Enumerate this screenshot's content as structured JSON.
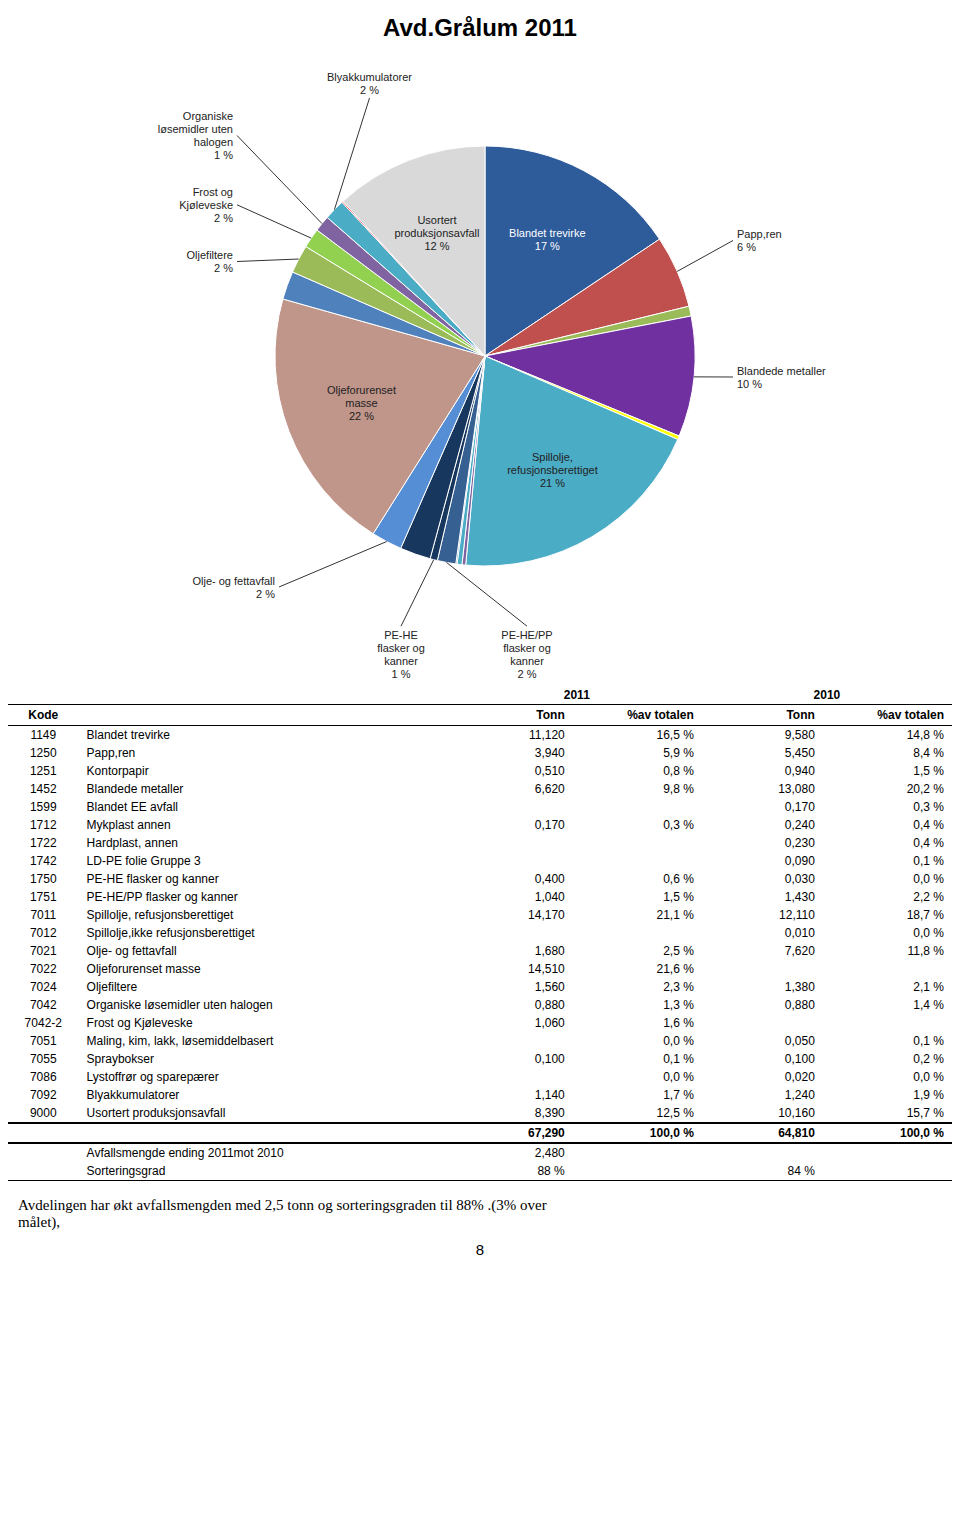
{
  "chart_data": {
    "type": "pie",
    "title": "Avd.Grålum 2011",
    "categories": [
      "Blandet trevirke\n17 %",
      "Papp,ren\n6 %",
      null,
      "Blandede metaller\n10 %",
      null,
      "Spillolje,\nrefusjonsberettiget\n21 %",
      null,
      null,
      null,
      "PE-HE/PP\nflasker og\nkanner\n2 %",
      "PE-HE\nflasker og\nkanner\n1 %",
      null,
      null,
      "Olje- og fettavfall\n2 %",
      "Oljeforurenset\nmasse\n22 %",
      null,
      "Oljefiltere\n2 %",
      "Frost og\nKjøleveske\n2 %",
      "Organiske\nløsemidler uten\nhalogen\n1 %",
      "Blyakkumulatorer\n2 %",
      null,
      "Usortert\nproduksjonsavfall\n12 %"
    ],
    "values": [
      16.5,
      5.9,
      0.8,
      9.8,
      0.3,
      21.1,
      0.3,
      0.4,
      0.1,
      1.5,
      0.6,
      0,
      2.5,
      2.5,
      21.6,
      2.3,
      2.3,
      1.6,
      1.3,
      1.7,
      0.1,
      12.5
    ],
    "colors": [
      "#2E5B9A",
      "#C0504D",
      "#9BBB59",
      "#7030A0",
      "#FFFF00",
      "#4BACC6",
      "#8064A2",
      "#4BACC6",
      "#336699",
      "#366092",
      "#17375E",
      "#1F497D",
      "#17375E",
      "#558ED5",
      "#C0958A",
      "#4F81BD",
      "#9BBB59",
      "#92D050",
      "#8064A2",
      "#4BACC6",
      "#FF0000",
      "#D9D9D9"
    ]
  },
  "table": {
    "group_headers": [
      "2011",
      "2010"
    ],
    "columns": [
      "Kode",
      null,
      "Tonn",
      "%av totalen",
      "Tonn",
      "%av totalen"
    ],
    "rows": [
      [
        "1149",
        "Blandet trevirke",
        "11,120",
        "16,5 %",
        "9,580",
        "14,8 %"
      ],
      [
        "1250",
        "Papp,ren",
        "3,940",
        "5,9 %",
        "5,450",
        "8,4 %"
      ],
      [
        "1251",
        "Kontorpapir",
        "0,510",
        "0,8 %",
        "0,940",
        "1,5 %"
      ],
      [
        "1452",
        "Blandede metaller",
        "6,620",
        "9,8 %",
        "13,080",
        "20,2 %"
      ],
      [
        "1599",
        "Blandet EE avfall",
        null,
        null,
        "0,170",
        "0,3 %"
      ],
      [
        "1712",
        "Mykplast annen",
        "0,170",
        "0,3 %",
        "0,240",
        "0,4 %"
      ],
      [
        "1722",
        "Hardplast, annen",
        null,
        null,
        "0,230",
        "0,4 %"
      ],
      [
        "1742",
        "LD-PE folie Gruppe 3",
        null,
        null,
        "0,090",
        "0,1 %"
      ],
      [
        "1750",
        "PE-HE flasker og kanner",
        "0,400",
        "0,6 %",
        "0,030",
        "0,0 %"
      ],
      [
        "1751",
        "PE-HE/PP flasker og kanner",
        "1,040",
        "1,5 %",
        "1,430",
        "2,2 %"
      ],
      [
        "7011",
        "Spillolje, refusjonsberettiget",
        "14,170",
        "21,1 %",
        "12,110",
        "18,7 %"
      ],
      [
        "7012",
        "Spillolje,ikke refusjonsberettiget",
        null,
        null,
        "0,010",
        "0,0 %"
      ],
      [
        "7021",
        "Olje- og fettavfall",
        "1,680",
        "2,5 %",
        "7,620",
        "11,8 %"
      ],
      [
        "7022",
        "Oljeforurenset masse",
        "14,510",
        "21,6 %",
        null,
        null
      ],
      [
        "7024",
        "Oljefiltere",
        "1,560",
        "2,3 %",
        "1,380",
        "2,1 %"
      ],
      [
        "7042",
        "Organiske løsemidler uten halogen",
        "0,880",
        "1,3 %",
        "0,880",
        "1,4 %"
      ],
      [
        "7042-2",
        "Frost og Kjøleveske",
        "1,060",
        "1,6 %",
        null,
        null
      ],
      [
        "7051",
        "Maling, kim, lakk, løsemiddelbasert",
        null,
        "0,0 %",
        "0,050",
        "0,1 %"
      ],
      [
        "7055",
        "Spraybokser",
        "0,100",
        "0,1 %",
        "0,100",
        "0,2 %"
      ],
      [
        "7086",
        "Lystoffrør og sparepærer",
        null,
        "0,0 %",
        "0,020",
        "0,0 %"
      ],
      [
        "7092",
        "Blyakkumulatorer",
        "1,140",
        "1,7 %",
        "1,240",
        "1,9 %"
      ],
      [
        "9000",
        "Usortert produksjonsavfall",
        "8,390",
        "12,5 %",
        "10,160",
        "15,7 %"
      ]
    ],
    "total_row": [
      null,
      null,
      "67,290",
      "100,0 %",
      "64,810",
      "100,0 %"
    ],
    "avfall_row": [
      null,
      "Avfallsmengde ending 2011mot 2010",
      "2,480",
      null,
      null,
      null
    ],
    "sort_row": [
      null,
      "Sorteringsgrad",
      "88 %",
      null,
      "84 %",
      null
    ]
  },
  "footer_text": "Avdelingen har økt avfallsmengden med 2,5 tonn og sorteringsgraden til 88% .(3% over\nmålet),",
  "page_number": "8"
}
